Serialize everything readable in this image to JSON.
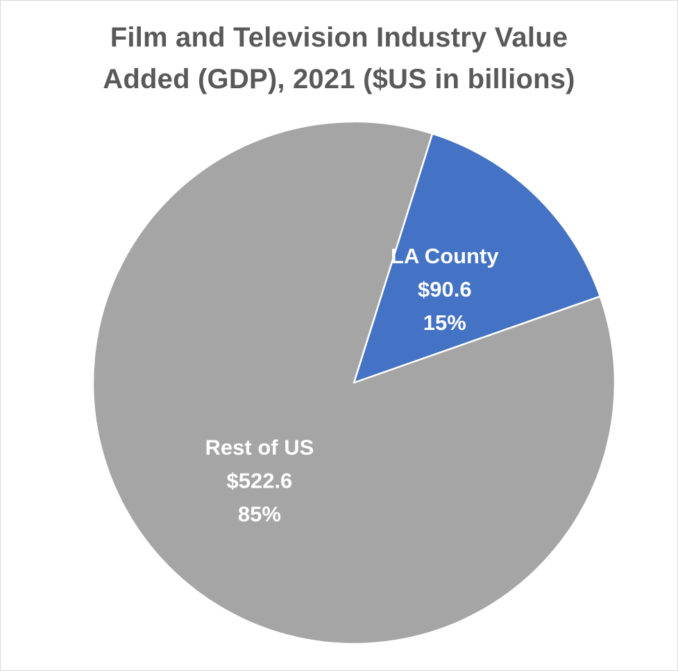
{
  "chart_data": {
    "type": "pie",
    "title_lines": [
      "Film and Television Industry Value",
      "Added (GDP), 2021 ($US in billions)"
    ],
    "slices": [
      {
        "label": "LA County",
        "value_label": "$90.6",
        "value": 90.6,
        "percent_label": "15%",
        "color": "#4472c4"
      },
      {
        "label": "Rest of US",
        "value_label": "$522.6",
        "value": 522.6,
        "percent_label": "85%",
        "color": "#a5a5a5"
      }
    ],
    "start_angle_deg": 17.5,
    "direction": "clockwise"
  }
}
